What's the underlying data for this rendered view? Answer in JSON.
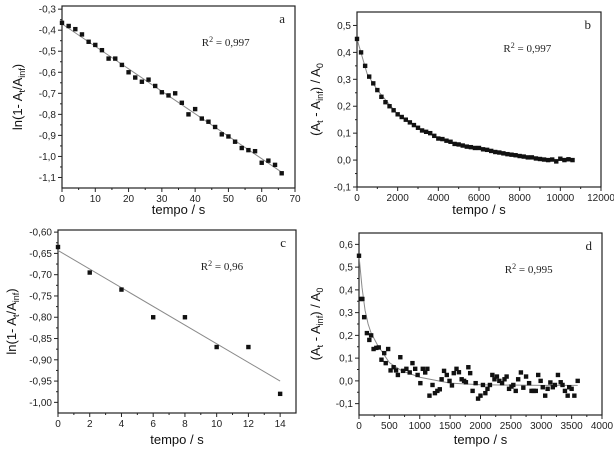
{
  "chart_data": [
    {
      "type": "scatter",
      "panel_label": "a",
      "annotation": {
        "r": "R",
        "sup": "2",
        "value": " = 0,997"
      },
      "xlabel": "tempo / s",
      "ylabel": {
        "pre": "ln(1- A",
        "sub1": "t",
        "mid": "/A",
        "sub2": "inf",
        "post": ")"
      },
      "xlim": [
        0,
        70
      ],
      "ylim": [
        -1.15,
        -0.285
      ],
      "xticks": [
        0,
        10,
        20,
        30,
        40,
        50,
        60,
        70
      ],
      "xtick_labels": [
        "0",
        "10",
        "20",
        "30",
        "40",
        "50",
        "60",
        "70"
      ],
      "yticks": [
        -0.3,
        -0.4,
        -0.5,
        -0.6,
        -0.7,
        -0.8,
        -0.9,
        -1.0,
        -1.1
      ],
      "ytick_labels": [
        "-0,3",
        "-0,4",
        "-0,5",
        "-0,6",
        "-0,7",
        "-0,8",
        "-0,9",
        "-1,0",
        "-1,1"
      ],
      "x": [
        0,
        2,
        4,
        6,
        8,
        10,
        12,
        14,
        16,
        18,
        20,
        22,
        24,
        26,
        28,
        30,
        32,
        34,
        36,
        38,
        40,
        42,
        44,
        46,
        48,
        50,
        52,
        54,
        56,
        58,
        60,
        62,
        64,
        66
      ],
      "y": [
        -0.365,
        -0.38,
        -0.395,
        -0.42,
        -0.455,
        -0.47,
        -0.495,
        -0.535,
        -0.535,
        -0.565,
        -0.6,
        -0.625,
        -0.645,
        -0.635,
        -0.665,
        -0.695,
        -0.71,
        -0.7,
        -0.745,
        -0.8,
        -0.775,
        -0.82,
        -0.835,
        -0.86,
        -0.895,
        -0.905,
        -0.93,
        -0.96,
        -0.97,
        -0.975,
        -1.03,
        -1.02,
        -1.04,
        -1.08
      ],
      "fit": [
        [
          0,
          -0.37
        ],
        [
          66,
          -1.075
        ]
      ]
    },
    {
      "type": "scatter",
      "panel_label": "b",
      "annotation": {
        "r": "R",
        "sup": "2",
        "value": " = 0,997"
      },
      "xlabel": "tempo / s",
      "ylabel": {
        "pre": "(A",
        "sub1": "t",
        "mid": " - A",
        "sub2": "inf",
        "post": ") / A",
        "sub3": "0"
      },
      "xlim": [
        0,
        12000
      ],
      "ylim": [
        -0.1,
        0.55
      ],
      "xticks": [
        0,
        2000,
        4000,
        6000,
        8000,
        10000,
        12000
      ],
      "xtick_labels": [
        "0",
        "2000",
        "4000",
        "6000",
        "8000",
        "10000",
        "12000"
      ],
      "yticks": [
        0.5,
        0.4,
        0.3,
        0.2,
        0.1,
        0.0,
        -0.1
      ],
      "ytick_labels": [
        "0,5",
        "0,4",
        "0,3",
        "0,2",
        "0,1",
        "0,0",
        "-0,1"
      ],
      "x": [
        0,
        200,
        400,
        600,
        800,
        1000,
        1200,
        1400,
        1600,
        1800,
        2000,
        2200,
        2400,
        2600,
        2800,
        3000,
        3200,
        3400,
        3600,
        3800,
        4000,
        4200,
        4400,
        4600,
        4800,
        5000,
        5200,
        5400,
        5600,
        5800,
        6000,
        6200,
        6400,
        6600,
        6800,
        7000,
        7200,
        7400,
        7600,
        7800,
        8000,
        8200,
        8400,
        8600,
        8800,
        9000,
        9200,
        9400,
        9600,
        9800,
        10000,
        10200,
        10400,
        10600
      ],
      "y": [
        0.45,
        0.4,
        0.35,
        0.31,
        0.285,
        0.26,
        0.235,
        0.215,
        0.2,
        0.185,
        0.17,
        0.16,
        0.15,
        0.14,
        0.13,
        0.12,
        0.11,
        0.105,
        0.1,
        0.09,
        0.08,
        0.078,
        0.072,
        0.068,
        0.06,
        0.058,
        0.054,
        0.05,
        0.048,
        0.045,
        0.045,
        0.04,
        0.038,
        0.034,
        0.03,
        0.028,
        0.025,
        0.022,
        0.02,
        0.018,
        0.015,
        0.013,
        0.01,
        0.01,
        0.006,
        0.004,
        0.002,
        0.0,
        0.002,
        -0.005,
        0.005,
        0.0,
        0.003,
        0.0
      ],
      "fit": [
        [
          0,
          0.45
        ],
        [
          500,
          0.32
        ],
        [
          1000,
          0.26
        ],
        [
          2000,
          0.17
        ],
        [
          3000,
          0.12
        ],
        [
          4000,
          0.08
        ],
        [
          5000,
          0.058
        ],
        [
          6000,
          0.044
        ],
        [
          7000,
          0.028
        ],
        [
          8000,
          0.015
        ],
        [
          9000,
          0.005
        ],
        [
          10600,
          0.0
        ]
      ]
    },
    {
      "type": "scatter",
      "panel_label": "c",
      "annotation": {
        "r": "R",
        "sup": "2",
        "value": " = 0,96"
      },
      "xlabel": "tempo / s",
      "ylabel": {
        "pre": "ln(1- A",
        "sub1": "t",
        "mid": "/A",
        "sub2": "inf",
        "post": ")"
      },
      "xlim": [
        0,
        15
      ],
      "ylim": [
        -1.025,
        -0.595
      ],
      "xticks": [
        0,
        2,
        4,
        6,
        8,
        10,
        12,
        14
      ],
      "xtick_labels": [
        "0",
        "2",
        "4",
        "6",
        "8",
        "10",
        "12",
        "14"
      ],
      "yticks": [
        -0.6,
        -0.65,
        -0.7,
        -0.75,
        -0.8,
        -0.85,
        -0.9,
        -0.95,
        -1.0
      ],
      "ytick_labels": [
        "-0,60",
        "-0,65",
        "-0,70",
        "-0,75",
        "-0,80",
        "-0,85",
        "-0,90",
        "-0,95",
        "-1,00"
      ],
      "x": [
        0,
        2,
        4,
        6,
        8,
        10,
        12,
        14
      ],
      "y": [
        -0.635,
        -0.695,
        -0.735,
        -0.8,
        -0.8,
        -0.87,
        -0.87,
        -0.98
      ],
      "fit": [
        [
          0,
          -0.643
        ],
        [
          14,
          -0.95
        ]
      ]
    },
    {
      "type": "scatter",
      "panel_label": "d",
      "annotation": {
        "r": "R",
        "sup": "2",
        "value": " = 0,995"
      },
      "xlabel": "tempo / s",
      "ylabel": {
        "pre": "(A",
        "sub1": "t",
        "mid": " - A",
        "sub2": "inf",
        "post": ") / A",
        "sub3": "0"
      },
      "xlim": [
        0,
        4000
      ],
      "ylim": [
        -0.15,
        0.65
      ],
      "xticks": [
        0,
        500,
        1000,
        1500,
        2000,
        2500,
        3000,
        3500,
        4000
      ],
      "xtick_labels": [
        "0",
        "500",
        "1000",
        "1500",
        "2000",
        "2500",
        "3000",
        "3500",
        "4000"
      ],
      "yticks": [
        0.6,
        0.5,
        0.4,
        0.3,
        0.2,
        0.1,
        0.0,
        -0.1
      ],
      "ytick_labels": [
        "0,6",
        "0,5",
        "0,4",
        "0,3",
        "0,2",
        "0,1",
        "0,0",
        "-0,1"
      ],
      "x": [
        0,
        30,
        55,
        85,
        130,
        170,
        200,
        240,
        285,
        325,
        370,
        415,
        440,
        480,
        520,
        570,
        610,
        640,
        680,
        725,
        780,
        835,
        880,
        925,
        965,
        1010,
        1050,
        1090,
        1125,
        1160,
        1210,
        1250,
        1290,
        1330,
        1360,
        1400,
        1445,
        1490,
        1530,
        1560,
        1605,
        1645,
        1690,
        1730,
        1760,
        1800,
        1830,
        1870,
        1920,
        1960,
        2000,
        2040,
        2080,
        2115,
        2155,
        2195,
        2230,
        2270,
        2310,
        2355,
        2395,
        2430,
        2470,
        2510,
        2540,
        2580,
        2620,
        2665,
        2705,
        2750,
        2800,
        2840,
        2875,
        2910,
        2950,
        2990,
        3025,
        3065,
        3105,
        3150,
        3190,
        3225,
        3275,
        3320,
        3350,
        3390,
        3435,
        3460,
        3500,
        3545,
        3600
      ],
      "y": [
        0.55,
        0.36,
        0.36,
        0.28,
        0.21,
        0.18,
        0.2,
        0.14,
        0.145,
        0.147,
        0.093,
        0.122,
        0.078,
        0.14,
        0.046,
        0.06,
        0.046,
        0.026,
        0.104,
        0.044,
        0.053,
        0.037,
        0.078,
        0.053,
        0.026,
        -0.01,
        0.053,
        0.037,
        0.053,
        -0.065,
        -0.018,
        -0.054,
        -0.044,
        -0.037,
        0.007,
        0.044,
        0.026,
        0.0,
        -0.02,
        0.034,
        0.053,
        0.038,
        0.007,
        0.0,
        -0.006,
        0.06,
        0.034,
        -0.044,
        -0.01,
        -0.078,
        -0.065,
        -0.018,
        -0.054,
        -0.035,
        -0.018,
        0.026,
        0.007,
        0.019,
        0.0,
        -0.01,
        0.007,
        0.019,
        -0.035,
        -0.025,
        -0.018,
        -0.044,
        0.007,
        0.037,
        -0.03,
        0.019,
        -0.01,
        -0.044,
        -0.044,
        -0.044,
        0.026,
        0.0,
        -0.028,
        -0.065,
        -0.035,
        -0.007,
        -0.028,
        -0.018,
        0.026,
        -0.006,
        -0.018,
        -0.044,
        -0.065,
        -0.028,
        -0.035,
        -0.065,
        0.0
      ],
      "fit": [
        [
          0,
          0.55
        ],
        [
          50,
          0.41
        ],
        [
          100,
          0.31
        ],
        [
          150,
          0.25
        ],
        [
          200,
          0.21
        ],
        [
          300,
          0.16
        ],
        [
          400,
          0.12
        ],
        [
          500,
          0.08
        ],
        [
          700,
          0.045
        ],
        [
          1000,
          0.016
        ],
        [
          1500,
          -0.01
        ],
        [
          2000,
          -0.017
        ],
        [
          3000,
          -0.02
        ],
        [
          3600,
          -0.02
        ]
      ]
    }
  ]
}
